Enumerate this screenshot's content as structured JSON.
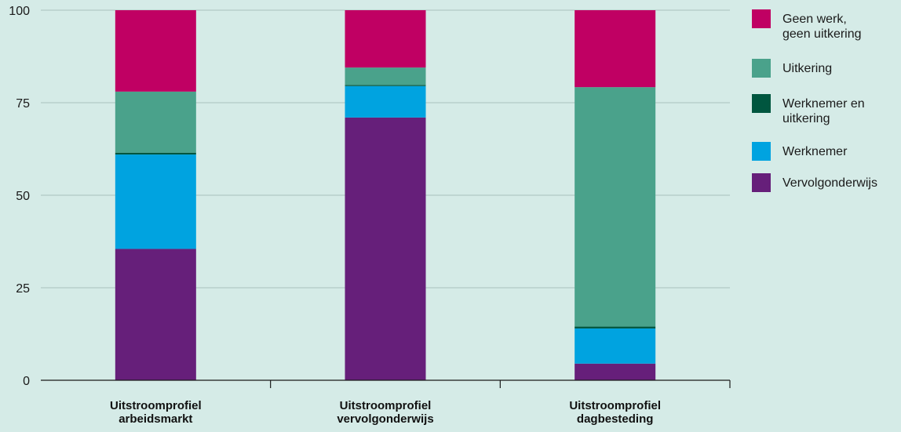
{
  "chart_data": {
    "type": "bar",
    "stacked": true,
    "categories": [
      [
        "Uitstroomprofiel",
        "arbeidsmarkt"
      ],
      [
        "Uitstroomprofiel",
        "vervolgonderwijs"
      ],
      [
        "Uitstroomprofiel",
        "dagbesteding"
      ]
    ],
    "series": [
      {
        "name": "Vervolgonderwijs",
        "color": "#661f7a",
        "values": [
          35.5,
          71.0,
          4.5
        ]
      },
      {
        "name": "Werknemer",
        "color": "#00a3e0",
        "values": [
          25.5,
          8.5,
          9.5
        ]
      },
      {
        "name": "Werknemer en uitkering",
        "color": "#00563f",
        "values": [
          0.5,
          0.3,
          0.5
        ]
      },
      {
        "name": "Uitkering",
        "color": "#4aa28b",
        "values": [
          16.5,
          4.7,
          64.7
        ]
      },
      {
        "name": "Geen werk, geen uitkering",
        "color": "#c00063",
        "values": [
          22.0,
          15.5,
          20.8
        ]
      }
    ],
    "legend": [
      {
        "lines": [
          "Geen werk,",
          "geen uitkering"
        ],
        "color": "#c00063"
      },
      {
        "lines": [
          "Uitkering"
        ],
        "color": "#4aa28b"
      },
      {
        "lines": [
          "Werknemer en",
          "uitkering"
        ],
        "color": "#00563f"
      },
      {
        "lines": [
          "Werknemer"
        ],
        "color": "#00a3e0"
      },
      {
        "lines": [
          "Vervolgonderwijs"
        ],
        "color": "#661f7a"
      }
    ],
    "yticks": [
      0,
      25,
      50,
      75,
      100
    ],
    "ylim": [
      0,
      100
    ],
    "grid": true,
    "legend_position": "right",
    "title": "",
    "xlabel": "",
    "ylabel": ""
  }
}
